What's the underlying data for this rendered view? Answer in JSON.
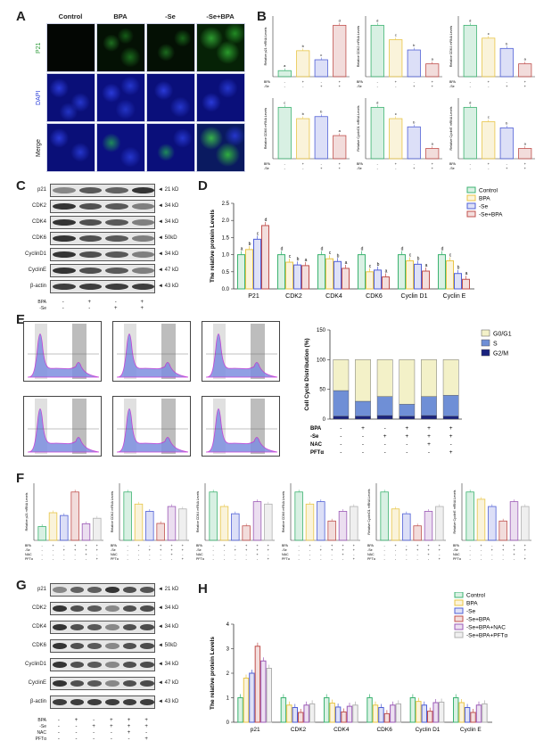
{
  "panels": {
    "A": "A",
    "B": "B",
    "C": "C",
    "D": "D",
    "E": "E",
    "F": "F",
    "G": "G",
    "H": "H"
  },
  "panel_a": {
    "columns": [
      "Control",
      "BPA",
      "-Se",
      "-Se+BPA"
    ],
    "rows": [
      "P21",
      "DAPI",
      "Merge"
    ]
  },
  "panel_b": {
    "plots": [
      {
        "ylabel": "Relative p21 mRNA Levels",
        "values": [
          1.0,
          4.3,
          2.8,
          8.5
        ],
        "letters": [
          "a",
          "b",
          "c",
          "d"
        ]
      },
      {
        "ylabel": "Relative CDK2 mRNA Levels",
        "values": [
          1.0,
          0.72,
          0.52,
          0.25
        ],
        "letters": [
          "d",
          "c",
          "b",
          "a"
        ]
      },
      {
        "ylabel": "Relative CDK4 mRNA Levels",
        "values": [
          1.0,
          0.75,
          0.55,
          0.25
        ],
        "letters": [
          "d",
          "c",
          "b",
          "a"
        ]
      },
      {
        "ylabel": "Relative CDK6 mRNA Levels",
        "values": [
          1.0,
          0.78,
          0.82,
          0.45
        ],
        "letters": [
          "c",
          "b",
          "b",
          "a"
        ]
      },
      {
        "ylabel": "Relative CyclinD1 mRNA Levels",
        "values": [
          1.0,
          0.78,
          0.62,
          0.2
        ],
        "letters": [
          "d",
          "c",
          "b",
          "a"
        ]
      },
      {
        "ylabel": "Relative CyclinE mRNA Levels",
        "values": [
          1.0,
          0.72,
          0.6,
          0.2
        ],
        "letters": [
          "d",
          "c",
          "b",
          "a"
        ]
      }
    ],
    "treat_rows": [
      {
        "label": "BPA",
        "marks": [
          "-",
          "+",
          "-",
          "+"
        ]
      },
      {
        "label": "-Se",
        "marks": [
          "-",
          "-",
          "+",
          "+"
        ]
      }
    ]
  },
  "panel_c": {
    "proteins": [
      "p21",
      "CDK2",
      "CDK4",
      "CDK6",
      "CyclinD1",
      "CyclinE",
      "β-actin"
    ],
    "kd": [
      "21 kD",
      "34 kD",
      "34 kD",
      "50kD",
      "34 kD",
      "47 kD",
      "43 kD"
    ],
    "treat_rows": [
      {
        "label": "BPA",
        "marks": [
          "-",
          "+",
          "-",
          "+"
        ]
      },
      {
        "label": "-Se",
        "marks": [
          "-",
          "-",
          "+",
          "+"
        ]
      }
    ]
  },
  "chart_data": [
    {
      "type": "bar",
      "ylabel": "The relative  protein Levels",
      "categories": [
        "P21",
        "CDK2",
        "CDK4",
        "CDK6",
        "Cyclin D1",
        "Cyclin E"
      ],
      "ylim": [
        0,
        2.5
      ],
      "yticks": [
        "0.0",
        "0.5",
        "1.0",
        "1.5",
        "2.0",
        "2.5"
      ],
      "series": [
        {
          "name": "Control",
          "values": [
            1.0,
            1.0,
            1.0,
            1.0,
            1.0,
            1.0
          ],
          "letters": [
            "a",
            "d",
            "d",
            "d",
            "d",
            "d"
          ]
        },
        {
          "name": "BPA",
          "values": [
            1.15,
            0.78,
            0.88,
            0.5,
            0.82,
            0.82
          ],
          "letters": [
            "b",
            "c",
            "c",
            "c",
            "c",
            "c"
          ]
        },
        {
          "name": "-Se",
          "values": [
            1.45,
            0.7,
            0.8,
            0.55,
            0.72,
            0.45
          ],
          "letters": [
            "c",
            "b",
            "b",
            "b",
            "b",
            "b"
          ]
        },
        {
          "name": "-Se+BPA",
          "values": [
            1.85,
            0.68,
            0.6,
            0.35,
            0.52,
            0.28
          ],
          "letters": [
            "d",
            "a",
            "a",
            "a",
            "a",
            "a"
          ]
        }
      ],
      "colors": [
        "#3cb371",
        "#e8c547",
        "#4f5fd6",
        "#c0504d"
      ],
      "legend": "top-right"
    },
    {
      "type": "bar",
      "stacked": true,
      "ylabel": "Cell Cycle Distribution (%)",
      "ylim": [
        0,
        150
      ],
      "yticks": [
        "0",
        "50",
        "100",
        "150"
      ],
      "groups": 6,
      "series": [
        {
          "name": "G0/G1",
          "values": [
            52,
            70,
            62,
            75,
            62,
            60
          ]
        },
        {
          "name": "S",
          "values": [
            43,
            25,
            32,
            20,
            32,
            35
          ]
        },
        {
          "name": "G2/M",
          "values": [
            5,
            5,
            6,
            5,
            6,
            5
          ]
        }
      ],
      "colors": [
        "#f3f1c8",
        "#6f8fd6",
        "#1a237e"
      ],
      "legend": "top-right",
      "treat_rows": [
        {
          "label": "BPA",
          "marks": [
            "-",
            "+",
            "-",
            "+",
            "+",
            "+"
          ]
        },
        {
          "label": "-Se",
          "marks": [
            "-",
            "-",
            "+",
            "+",
            "+",
            "+"
          ]
        },
        {
          "label": "NAC",
          "marks": [
            "-",
            "-",
            "-",
            "-",
            "+",
            "-"
          ]
        },
        {
          "label": "PFTα",
          "marks": [
            "-",
            "-",
            "-",
            "-",
            "-",
            "+"
          ]
        }
      ]
    },
    {
      "type": "bar",
      "ylabel": "The relative  protein Levels",
      "categories": [
        "p21",
        "CDK2",
        "CDK4",
        "CDK6",
        "Cyclin D1",
        "Cyclin E"
      ],
      "ylim": [
        0,
        4
      ],
      "yticks": [
        "0",
        "1",
        "2",
        "3",
        "4"
      ],
      "series": [
        {
          "name": "Control",
          "values": [
            1.0,
            1.0,
            1.0,
            1.0,
            1.0,
            1.0
          ]
        },
        {
          "name": "BPA",
          "values": [
            1.8,
            0.7,
            0.78,
            0.7,
            0.85,
            0.8
          ]
        },
        {
          "name": "-Se",
          "values": [
            2.0,
            0.6,
            0.62,
            0.6,
            0.7,
            0.6
          ]
        },
        {
          "name": "-Se+BPA",
          "values": [
            3.1,
            0.4,
            0.42,
            0.35,
            0.45,
            0.4
          ]
        },
        {
          "name": "-Se+BPA+NAC",
          "values": [
            2.5,
            0.7,
            0.65,
            0.7,
            0.8,
            0.7
          ]
        },
        {
          "name": "-Se+BPA+PFTα",
          "values": [
            2.2,
            0.75,
            0.7,
            0.75,
            0.82,
            0.75
          ]
        }
      ],
      "colors": [
        "#3cb371",
        "#e8c547",
        "#4f5fd6",
        "#c0504d",
        "#9b59b6",
        "#b0b0b0"
      ],
      "legend": "top-right"
    }
  ],
  "panel_f": {
    "plots": [
      {
        "ylabel": "Relative p21 mRNA Levels",
        "values": [
          1.0,
          2.0,
          1.8,
          3.5,
          1.2,
          1.6
        ]
      },
      {
        "ylabel": "Relative CDK2 mRNA Levels",
        "values": [
          1.0,
          0.75,
          0.6,
          0.35,
          0.7,
          0.65
        ]
      },
      {
        "ylabel": "Relative CDK4 mRNA Levels",
        "values": [
          1.0,
          0.7,
          0.55,
          0.3,
          0.8,
          0.75
        ]
      },
      {
        "ylabel": "Relative CDK6 mRNA Levels",
        "values": [
          1.0,
          0.75,
          0.8,
          0.4,
          0.6,
          0.7
        ]
      },
      {
        "ylabel": "Relative CyclinD1 mRNA Levels",
        "values": [
          1.0,
          0.65,
          0.55,
          0.3,
          0.6,
          0.7
        ]
      },
      {
        "ylabel": "Relative CyclinE mRNA Levels",
        "values": [
          1.0,
          0.85,
          0.7,
          0.4,
          0.8,
          0.7
        ]
      }
    ],
    "treat_rows": [
      {
        "label": "BPA",
        "marks": [
          "-",
          "+",
          "-",
          "+",
          "+",
          "+"
        ]
      },
      {
        "label": "-Se",
        "marks": [
          "-",
          "-",
          "+",
          "+",
          "+",
          "+"
        ]
      },
      {
        "label": "NAC",
        "marks": [
          "-",
          "-",
          "-",
          "-",
          "+",
          "-"
        ]
      },
      {
        "label": "PFTα",
        "marks": [
          "-",
          "-",
          "-",
          "-",
          "-",
          "+"
        ]
      }
    ]
  },
  "panel_g": {
    "proteins": [
      "p21",
      "CDK2",
      "CDK4",
      "CDK6",
      "CyclinD1",
      "CyclinE",
      "β-actin"
    ],
    "kd": [
      "21 kD",
      "34 kD",
      "34 kD",
      "50kD",
      "34 kD",
      "47 kD",
      "43 kD"
    ],
    "treat_rows": [
      {
        "label": "BPA",
        "marks": [
          "-",
          "+",
          "-",
          "+",
          "+",
          "+"
        ]
      },
      {
        "label": "-Se",
        "marks": [
          "-",
          "-",
          "+",
          "+",
          "+",
          "+"
        ]
      },
      {
        "label": "NAC",
        "marks": [
          "-",
          "-",
          "-",
          "-",
          "+",
          "-"
        ]
      },
      {
        "label": "PFTα",
        "marks": [
          "-",
          "-",
          "-",
          "-",
          "-",
          "+"
        ]
      }
    ]
  }
}
